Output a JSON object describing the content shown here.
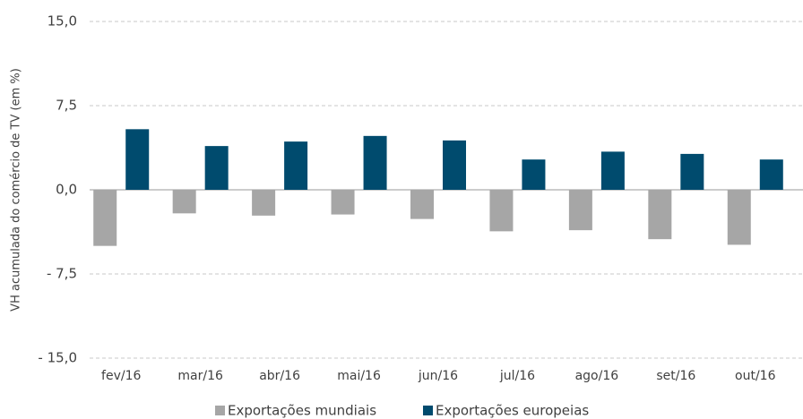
{
  "chart_data": {
    "type": "bar",
    "y_label": "VH acumulada do comércio de TV (em %)",
    "categories": [
      "fev/16",
      "mar/16",
      "abr/16",
      "mai/16",
      "jun/16",
      "jul/16",
      "ago/16",
      "set/16",
      "out/16"
    ],
    "series": [
      {
        "name": "Exportações mundiais",
        "color": "#a6a6a6",
        "values": [
          -5.0,
          -2.1,
          -2.3,
          -2.2,
          -2.6,
          -3.7,
          -3.6,
          -4.4,
          -4.9
        ]
      },
      {
        "name": "Exportações europeias",
        "color": "#004b6e",
        "values": [
          5.4,
          3.9,
          4.3,
          4.8,
          4.4,
          2.7,
          3.4,
          3.2,
          2.7
        ]
      }
    ],
    "ylim": [
      -15,
      15
    ],
    "yticks": [
      {
        "value": -15,
        "label": "- 15,0"
      },
      {
        "value": -7.5,
        "label": "- 7,5"
      },
      {
        "value": 0,
        "label": "0,0"
      },
      {
        "value": 7.5,
        "label": "7,5"
      },
      {
        "value": 15,
        "label": "15,0"
      }
    ],
    "grid": true,
    "legend": "bottom"
  }
}
